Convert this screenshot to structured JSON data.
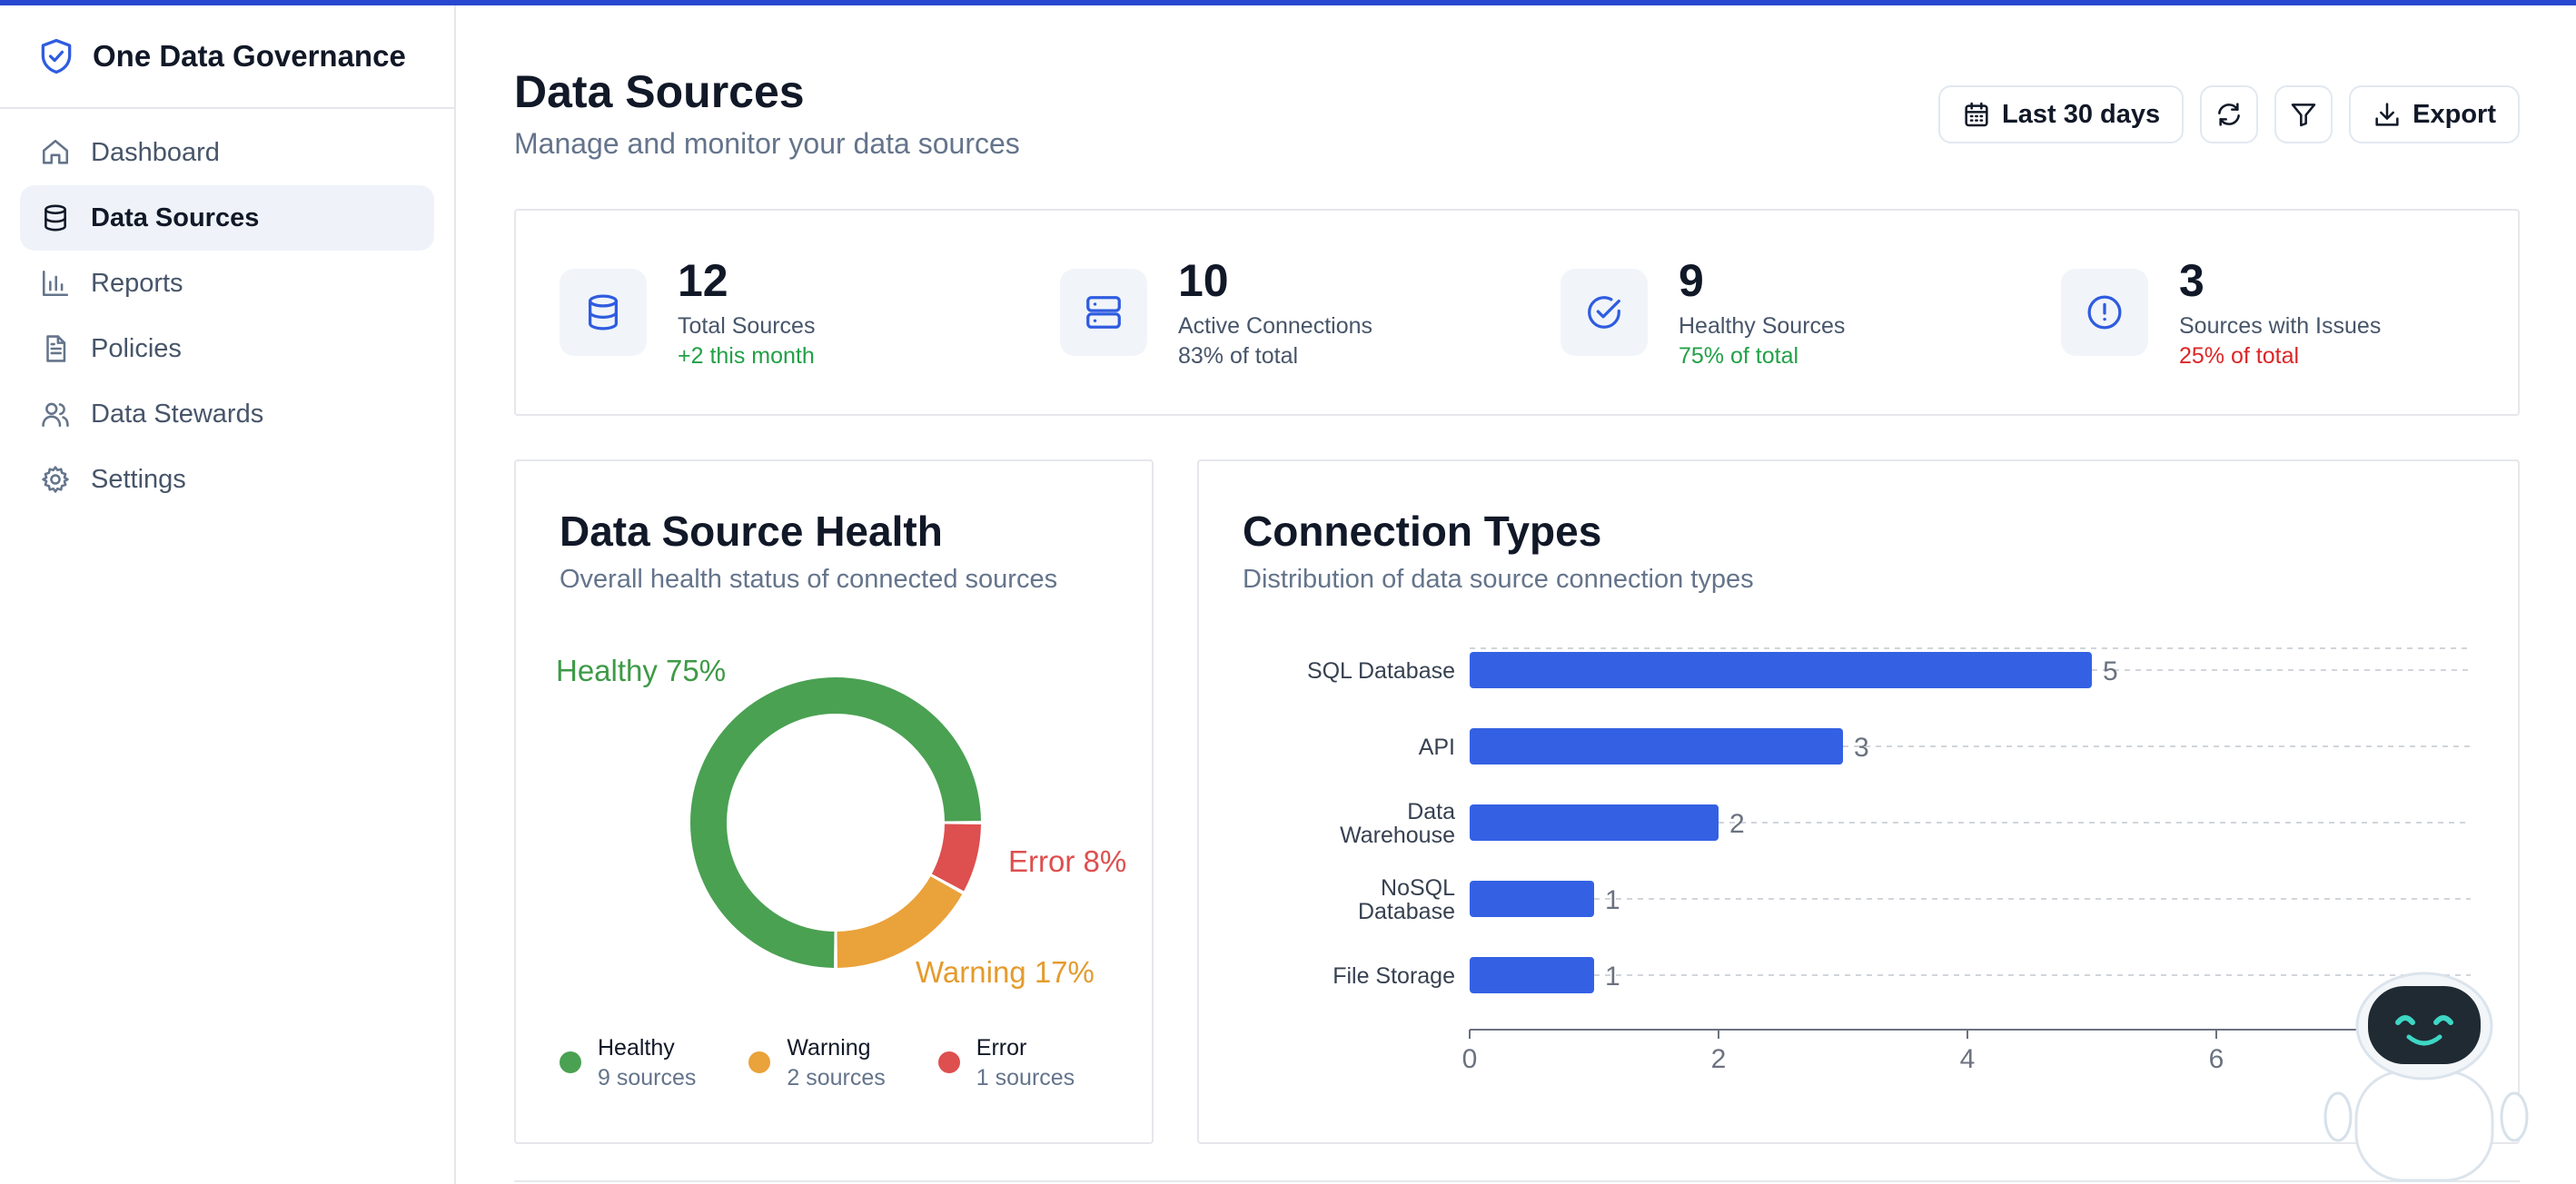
{
  "brand": {
    "title": "One Data Governance",
    "accent": "#2948d1"
  },
  "sidebar": {
    "items": [
      {
        "label": "Dashboard",
        "icon": "home-icon"
      },
      {
        "label": "Data Sources",
        "icon": "database-icon",
        "active": true
      },
      {
        "label": "Reports",
        "icon": "bar-chart-icon"
      },
      {
        "label": "Policies",
        "icon": "document-icon"
      },
      {
        "label": "Data Stewards",
        "icon": "users-icon"
      },
      {
        "label": "Settings",
        "icon": "gear-icon"
      }
    ]
  },
  "header": {
    "title": "Data Sources",
    "subtitle": "Manage and monitor your data sources",
    "date_range_label": "Last 30 days",
    "export_label": "Export"
  },
  "stats": [
    {
      "value": "12",
      "label": "Total Sources",
      "note": "+2 this month",
      "tone": "green"
    },
    {
      "value": "10",
      "label": "Active Connections",
      "note": "83% of total",
      "tone": "muted"
    },
    {
      "value": "9",
      "label": "Healthy Sources",
      "note": "75% of total",
      "tone": "green"
    },
    {
      "value": "3",
      "label": "Sources with Issues",
      "note": "25% of total",
      "tone": "red"
    }
  ],
  "health": {
    "title": "Data Source Health",
    "subtitle": "Overall health status of connected sources",
    "slice_labels": {
      "healthy": "Healthy 75%",
      "error": "Error 8%",
      "warning": "Warning 17%"
    },
    "legend": [
      {
        "name": "Healthy",
        "count": "9 sources",
        "color": "#4aa152"
      },
      {
        "name": "Warning",
        "count": "2 sources",
        "color": "#eaa23b"
      },
      {
        "name": "Error",
        "count": "1 sources",
        "color": "#de4f4f"
      }
    ]
  },
  "connections": {
    "title": "Connection Types",
    "subtitle": "Distribution of data source connection types"
  },
  "chart_data": [
    {
      "type": "pie",
      "title": "Data Source Health",
      "categories": [
        "Healthy",
        "Warning",
        "Error"
      ],
      "values": [
        75,
        17,
        8
      ],
      "colors": [
        "#4aa152",
        "#eaa23b",
        "#de4f4f"
      ]
    },
    {
      "type": "bar",
      "orientation": "horizontal",
      "title": "Connection Types",
      "categories": [
        "SQL Database",
        "API",
        "Data Warehouse",
        "NoSQL Database",
        "File Storage"
      ],
      "values": [
        5,
        3,
        2,
        1,
        1
      ],
      "xticks": [
        "0",
        "2",
        "4",
        "6"
      ],
      "xlim": [
        0,
        8
      ],
      "bar_color": "#3461e3"
    }
  ]
}
